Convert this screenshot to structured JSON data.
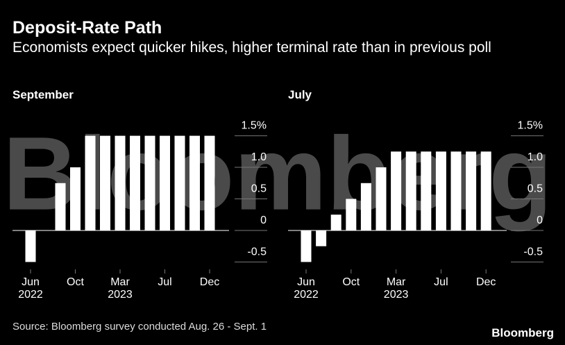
{
  "title": "Deposit-Rate Path",
  "subtitle": "Economists expect quicker hikes, higher terminal rate than in previous poll",
  "source": "Source: Bloomberg survey conducted Aug. 26 - Sept. 1",
  "logo": "Bloomberg",
  "watermark": "Bloomberg",
  "chart_data": [
    {
      "type": "bar",
      "title": "September",
      "color": "#ffffff",
      "categories": [
        "Jun",
        null,
        null,
        "Oct",
        null,
        null,
        "Mar",
        null,
        null,
        "Jul",
        null,
        null,
        "Dec"
      ],
      "x_sublabels": [
        "2022",
        null,
        null,
        null,
        null,
        null,
        "2023",
        null,
        null,
        null,
        null,
        null,
        null
      ],
      "values": [
        -0.5,
        0,
        0.75,
        1.0,
        1.5,
        1.5,
        1.5,
        1.5,
        1.5,
        1.5,
        1.5,
        1.5,
        1.5
      ],
      "ylim": [
        -0.6,
        1.6
      ],
      "yticks": [
        {
          "value": 1.5,
          "label": "1.5%"
        },
        {
          "value": 1,
          "label": "1.0"
        },
        0.5,
        0,
        -0.5
      ]
    },
    {
      "type": "bar",
      "title": "July",
      "color": "#ffffff",
      "categories": [
        "Jun",
        null,
        null,
        "Oct",
        null,
        null,
        "Mar",
        null,
        null,
        "Jul",
        null,
        null,
        "Dec"
      ],
      "x_sublabels": [
        "2022",
        null,
        null,
        null,
        null,
        null,
        "2023",
        null,
        null,
        null,
        null,
        null,
        null
      ],
      "values": [
        -0.5,
        -0.25,
        0.25,
        0.5,
        0.75,
        1.0,
        1.25,
        1.25,
        1.25,
        1.25,
        1.25,
        1.25,
        1.25
      ],
      "ylim": [
        -0.6,
        1.6
      ],
      "yticks": [
        {
          "value": 1.5,
          "label": "1.5%"
        },
        {
          "value": 1,
          "label": "1.0"
        },
        0.5,
        0,
        -0.5
      ]
    }
  ]
}
